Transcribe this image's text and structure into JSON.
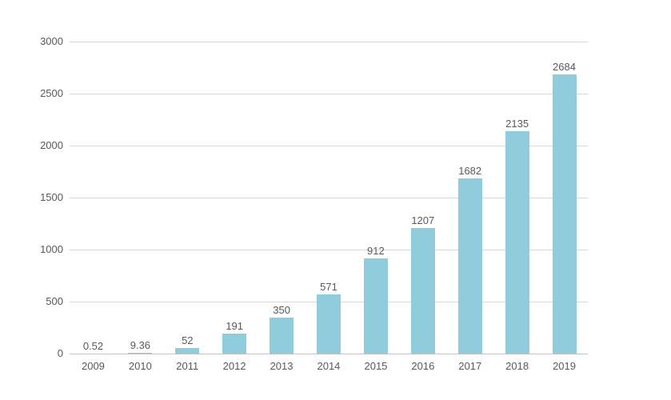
{
  "chart_data": {
    "type": "bar",
    "categories": [
      "2009",
      "2010",
      "2011",
      "2012",
      "2013",
      "2014",
      "2015",
      "2016",
      "2017",
      "2018",
      "2019"
    ],
    "values": [
      0.52,
      9.36,
      52,
      191,
      350,
      571,
      912,
      1207,
      1682,
      2135,
      2684
    ],
    "value_labels": [
      "0.52",
      "9.36",
      "52",
      "191",
      "350",
      "571",
      "912",
      "1207",
      "1682",
      "2135",
      "2684"
    ],
    "yticks": [
      0,
      500,
      1000,
      1500,
      2000,
      2500,
      3000
    ],
    "ylim": [
      0,
      3000
    ],
    "xlabel": "",
    "ylabel": "",
    "grid": true,
    "legend": "none",
    "colors": {
      "bar": "#8fccdc",
      "text": "#595959",
      "gridline": "#d8d8d8",
      "axis": "#c3c3c3",
      "background": "#ffffff"
    }
  }
}
